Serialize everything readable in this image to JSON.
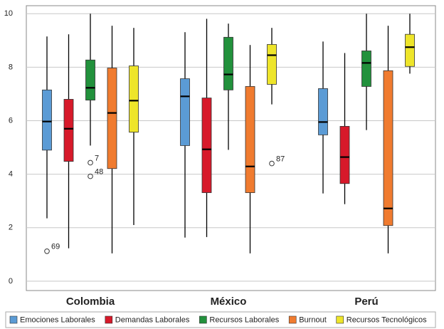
{
  "chart_data": {
    "type": "boxplot",
    "categories": [
      "Colombia",
      "México",
      "Perú"
    ],
    "ylim": [
      -0.35,
      10.3
    ],
    "yticks": [
      0,
      2,
      4,
      6,
      8,
      10
    ],
    "grid": true,
    "legend": "bottom",
    "series": [
      {
        "name": "Emociones Laborales",
        "color": "#5b9bd5",
        "min": [
          2.35,
          1.63,
          3.28
        ],
        "q1": [
          4.9,
          5.07,
          5.47
        ],
        "median": [
          5.97,
          6.91,
          5.95
        ],
        "q3": [
          7.15,
          7.57,
          7.2
        ],
        "max": [
          9.15,
          9.31,
          8.96
        ],
        "outliers": [
          [
            {
              "value": 1.12,
              "label": "69"
            }
          ],
          [],
          []
        ]
      },
      {
        "name": "Demandas Laborales",
        "color": "#d7192a",
        "min": [
          1.23,
          1.65,
          2.88
        ],
        "q1": [
          4.48,
          3.31,
          3.65
        ],
        "median": [
          5.7,
          4.93,
          4.64
        ],
        "q3": [
          6.8,
          6.85,
          5.79
        ],
        "max": [
          9.23,
          9.81,
          8.53
        ],
        "outliers": [
          [],
          [],
          []
        ]
      },
      {
        "name": "Recursos Laborales",
        "color": "#22913c",
        "min": [
          5.07,
          4.91,
          5.65
        ],
        "q1": [
          6.77,
          7.15,
          7.28
        ],
        "median": [
          7.23,
          7.73,
          8.16
        ],
        "q3": [
          8.27,
          9.12,
          8.61
        ],
        "max": [
          10,
          9.63,
          10
        ],
        "outliers": [
          [
            {
              "value": 4.43,
              "label": "7"
            },
            {
              "value": 3.92,
              "label": "48"
            }
          ],
          [],
          []
        ]
      },
      {
        "name": "Burnout",
        "color": "#f07b2f",
        "min": [
          1.04,
          1.04,
          1.04
        ],
        "q1": [
          4.21,
          3.31,
          2.08
        ],
        "median": [
          6.29,
          4.29,
          2.72
        ],
        "q3": [
          7.97,
          7.28,
          7.87
        ],
        "max": [
          9.55,
          8.83,
          9.55
        ],
        "outliers": [
          [],
          [],
          []
        ]
      },
      {
        "name": "Recursos Tecnológicos",
        "color": "#eee52a",
        "min": [
          2.1,
          6.61,
          7.76
        ],
        "q1": [
          5.57,
          7.36,
          8.03
        ],
        "median": [
          6.75,
          8.45,
          8.75
        ],
        "q3": [
          8.05,
          8.85,
          9.23
        ],
        "max": [
          9.47,
          9.47,
          10
        ],
        "outliers": [
          [],
          [
            {
              "value": 4.4,
              "label": "87"
            }
          ],
          []
        ]
      }
    ]
  }
}
